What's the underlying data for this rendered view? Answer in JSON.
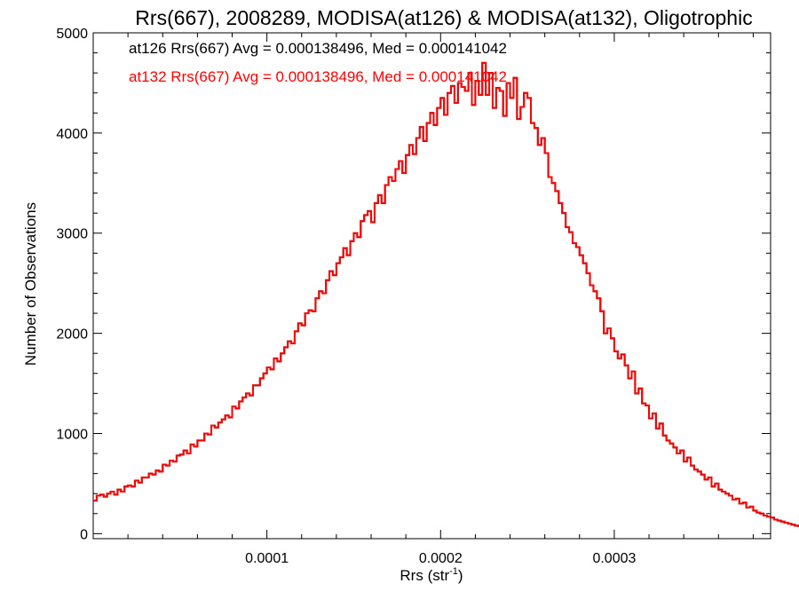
{
  "chart_data": {
    "type": "line",
    "title": "Rrs(667), 2008289, MODISA(at126) & MODISA(at132), Oligotrophic",
    "xlabel_main": "Rrs (str",
    "xlabel_sup": "-1",
    "xlabel_close": ")",
    "ylabel": "Number of Observations",
    "xlim": [
      0.0,
      0.00039
    ],
    "ylim": [
      -50,
      5000
    ],
    "x_ticks": [
      0.0001,
      0.0002,
      0.0003
    ],
    "x_tick_labels": [
      "0.0001",
      "0.0002",
      "0.0003"
    ],
    "y_ticks": [
      0,
      1000,
      2000,
      3000,
      4000,
      5000
    ],
    "y_tick_labels": [
      "0",
      "1000",
      "2000",
      "3000",
      "4000",
      "5000"
    ],
    "grid": false,
    "annotations": [
      {
        "text": "at126 Rrs(667) Avg = 0.000138496, Med = 0.000141042",
        "color": "#000000"
      },
      {
        "text": "at132 Rrs(667) Avg = 0.000138496, Med = 0.000141042",
        "color": "#ff0000"
      }
    ],
    "series": [
      {
        "name": "at126",
        "color": "#000000",
        "bin_start": 0.0,
        "bin_width": 2e-06,
        "values": [
          330,
          380,
          390,
          370,
          400,
          420,
          390,
          440,
          420,
          470,
          480,
          470,
          530,
          510,
          560,
          560,
          600,
          590,
          630,
          620,
          690,
          680,
          730,
          720,
          780,
          790,
          830,
          800,
          890,
          870,
          930,
          930,
          1000,
          990,
          1080,
          1060,
          1110,
          1140,
          1180,
          1160,
          1270,
          1250,
          1320,
          1360,
          1400,
          1380,
          1480,
          1480,
          1550,
          1600,
          1660,
          1640,
          1750,
          1720,
          1800,
          1860,
          1920,
          1900,
          2020,
          2100,
          2080,
          2200,
          2230,
          2220,
          2350,
          2420,
          2400,
          2530,
          2620,
          2580,
          2700,
          2760,
          2850,
          2780,
          2920,
          3000,
          2960,
          3120,
          3180,
          3220,
          3110,
          3300,
          3380,
          3300,
          3480,
          3560,
          3520,
          3640,
          3720,
          3600,
          3780,
          3880,
          3790,
          3950,
          4060,
          3920,
          4100,
          4200,
          4080,
          4250,
          4350,
          4180,
          4400,
          4470,
          4300,
          4500,
          4460,
          4420,
          4600,
          4280,
          4520,
          4380,
          4700,
          4380,
          4600,
          4250,
          4450,
          4420,
          4170,
          4500,
          4350,
          4550,
          4140,
          4260,
          4400,
          4350,
          4100,
          4050,
          3880,
          3950,
          3800,
          3560,
          3500,
          3420,
          3300,
          3200,
          3060,
          3010,
          2900,
          2860,
          2780,
          2700,
          2600,
          2480,
          2420,
          2350,
          2220,
          2000,
          2050,
          1950,
          1820,
          1750,
          1790,
          1680,
          1550,
          1620,
          1400,
          1450,
          1300,
          1280,
          1150,
          1200,
          1050,
          1100,
          980,
          930,
          900,
          860,
          800,
          830,
          720,
          760,
          680,
          640,
          620,
          590,
          540,
          560,
          470,
          500,
          440,
          420,
          400,
          380,
          340,
          350,
          300,
          310,
          260,
          270,
          230,
          210,
          200,
          180,
          170,
          160,
          140,
          130,
          120,
          110,
          100,
          90,
          80,
          75,
          70,
          60,
          55,
          50,
          45,
          40,
          38,
          35,
          30,
          30,
          25,
          25,
          20,
          20,
          18,
          15,
          15,
          12,
          10,
          10,
          8,
          8,
          6,
          5,
          5,
          4,
          3,
          3,
          2,
          2,
          2,
          1,
          1,
          1,
          1
        ]
      },
      {
        "name": "at132",
        "color": "#ff0000",
        "bin_start": 0.0,
        "bin_width": 2e-06,
        "values": [
          330,
          380,
          390,
          370,
          400,
          420,
          390,
          440,
          420,
          470,
          480,
          470,
          530,
          510,
          560,
          560,
          600,
          590,
          630,
          620,
          690,
          680,
          730,
          720,
          780,
          790,
          830,
          800,
          890,
          870,
          930,
          930,
          1000,
          990,
          1080,
          1060,
          1110,
          1140,
          1180,
          1160,
          1270,
          1250,
          1320,
          1360,
          1400,
          1380,
          1480,
          1480,
          1550,
          1600,
          1660,
          1640,
          1750,
          1720,
          1800,
          1860,
          1920,
          1900,
          2020,
          2100,
          2080,
          2200,
          2230,
          2220,
          2350,
          2420,
          2400,
          2530,
          2620,
          2580,
          2700,
          2760,
          2850,
          2780,
          2920,
          3000,
          2960,
          3120,
          3180,
          3220,
          3110,
          3300,
          3380,
          3300,
          3480,
          3560,
          3520,
          3640,
          3720,
          3600,
          3780,
          3880,
          3790,
          3950,
          4060,
          3920,
          4100,
          4200,
          4080,
          4250,
          4350,
          4180,
          4400,
          4470,
          4300,
          4500,
          4460,
          4420,
          4600,
          4280,
          4520,
          4380,
          4700,
          4380,
          4600,
          4250,
          4450,
          4420,
          4170,
          4500,
          4350,
          4550,
          4140,
          4260,
          4400,
          4350,
          4100,
          4050,
          3880,
          3950,
          3800,
          3560,
          3500,
          3420,
          3300,
          3200,
          3060,
          3010,
          2900,
          2860,
          2780,
          2700,
          2600,
          2480,
          2420,
          2350,
          2220,
          2000,
          2050,
          1950,
          1820,
          1750,
          1790,
          1680,
          1550,
          1620,
          1400,
          1450,
          1300,
          1280,
          1150,
          1200,
          1050,
          1100,
          980,
          930,
          900,
          860,
          800,
          830,
          720,
          760,
          680,
          640,
          620,
          590,
          540,
          560,
          470,
          500,
          440,
          420,
          400,
          380,
          340,
          350,
          300,
          310,
          260,
          270,
          230,
          210,
          200,
          180,
          170,
          160,
          140,
          130,
          120,
          110,
          100,
          90,
          80,
          75,
          70,
          60,
          55,
          50,
          45,
          40,
          38,
          35,
          30,
          30,
          25,
          25,
          20,
          20,
          18,
          15,
          15,
          12,
          10,
          10,
          8,
          8,
          6,
          5,
          5,
          4,
          3,
          3,
          2,
          2,
          2,
          1,
          1,
          1,
          1
        ]
      }
    ]
  }
}
